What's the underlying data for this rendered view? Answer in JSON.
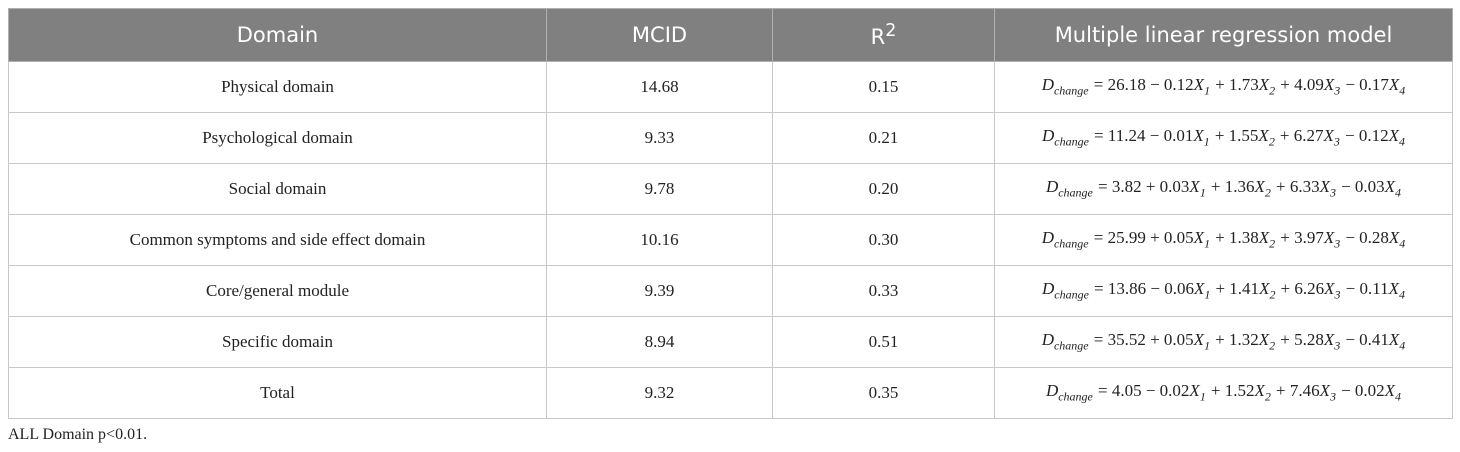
{
  "table": {
    "header": [
      "Domain",
      "MCID",
      {
        "text": "R",
        "sup": "2"
      },
      "Multiple linear regression model"
    ],
    "rows": [
      [
        "Physical domain",
        "14.68",
        "0.15",
        [
          {
            "var": "D",
            "sub": "change"
          },
          {
            "text": "= 26.18 − 0.12"
          },
          {
            "var": "X",
            "sub": "1"
          },
          {
            "text": "+ 1.73"
          },
          {
            "var": "X",
            "sub": "2"
          },
          {
            "text": "+ 4.09"
          },
          {
            "var": "X",
            "sub": "3"
          },
          {
            "text": "− 0.17"
          },
          {
            "var": "X",
            "sub": "4"
          }
        ]
      ],
      [
        "Psychological domain",
        "9.33",
        "0.21",
        [
          {
            "var": "D",
            "sub": "change"
          },
          {
            "text": "= 11.24 − 0.01"
          },
          {
            "var": "X",
            "sub": "1"
          },
          {
            "text": "+ 1.55"
          },
          {
            "var": "X",
            "sub": "2"
          },
          {
            "text": "+ 6.27"
          },
          {
            "var": "X",
            "sub": "3"
          },
          {
            "text": "− 0.12"
          },
          {
            "var": "X",
            "sub": "4"
          }
        ]
      ],
      [
        "Social domain",
        "9.78",
        "0.20",
        [
          {
            "var": "D",
            "sub": "change"
          },
          {
            "text": "= 3.82 + 0.03"
          },
          {
            "var": "X",
            "sub": "1"
          },
          {
            "text": "+ 1.36"
          },
          {
            "var": "X",
            "sub": "2"
          },
          {
            "text": "+ 6.33"
          },
          {
            "var": "X",
            "sub": "3"
          },
          {
            "text": "− 0.03"
          },
          {
            "var": "X",
            "sub": "4"
          }
        ]
      ],
      [
        "Common symptoms and side effect domain",
        "10.16",
        "0.30",
        [
          {
            "var": "D",
            "sub": "change"
          },
          {
            "text": "= 25.99 + 0.05"
          },
          {
            "var": "X",
            "sub": "1"
          },
          {
            "text": "+ 1.38"
          },
          {
            "var": "X",
            "sub": "2"
          },
          {
            "text": "+ 3.97"
          },
          {
            "var": "X",
            "sub": "3"
          },
          {
            "text": "− 0.28"
          },
          {
            "var": "X",
            "sub": "4"
          }
        ]
      ],
      [
        "Core/general module",
        "9.39",
        "0.33",
        [
          {
            "var": "D",
            "sub": "change"
          },
          {
            "text": "= 13.86 − 0.06"
          },
          {
            "var": "X",
            "sub": "1"
          },
          {
            "text": "+ 1.41"
          },
          {
            "var": "X",
            "sub": "2"
          },
          {
            "text": "+ 6.26"
          },
          {
            "var": "X",
            "sub": "3"
          },
          {
            "text": "− 0.11"
          },
          {
            "var": "X",
            "sub": "4"
          }
        ]
      ],
      [
        "Specific domain",
        "8.94",
        "0.51",
        [
          {
            "var": "D",
            "sub": "change"
          },
          {
            "text": "= 35.52 + 0.05"
          },
          {
            "var": "X",
            "sub": "1"
          },
          {
            "text": "+ 1.32"
          },
          {
            "var": "X",
            "sub": "2"
          },
          {
            "text": "+ 5.28"
          },
          {
            "var": "X",
            "sub": "3"
          },
          {
            "text": "− 0.41"
          },
          {
            "var": "X",
            "sub": "4"
          }
        ]
      ],
      [
        "Total",
        "9.32",
        "0.35",
        [
          {
            "var": "D",
            "sub": "change"
          },
          {
            "text": "= 4.05 − 0.02"
          },
          {
            "var": "X",
            "sub": "1"
          },
          {
            "text": "+ 1.52"
          },
          {
            "var": "X",
            "sub": "2"
          },
          {
            "text": "+ 7.46"
          },
          {
            "var": "X",
            "sub": "3"
          },
          {
            "text": "− 0.02"
          },
          {
            "var": "X",
            "sub": "4"
          }
        ]
      ]
    ],
    "footnote": "ALL Domain p<0.01."
  }
}
